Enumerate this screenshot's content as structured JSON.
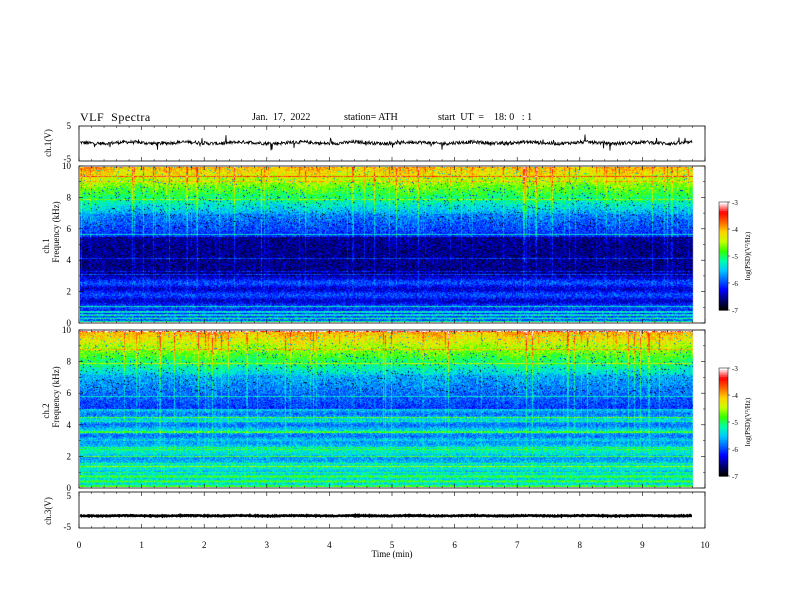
{
  "header": {
    "title": "VLF  Spectra",
    "date": "Jan.  17,  2022",
    "station": "station= ATH",
    "start": "start  UT  =    18: 0   : 1"
  },
  "chart_data": {
    "type": "heatmap",
    "x_axis": {
      "label": "Time  (min)",
      "range": [
        0,
        10
      ],
      "ticks": [
        "0",
        "1",
        "2",
        "3",
        "4",
        "5",
        "6",
        "7",
        "8",
        "9",
        "10"
      ],
      "data_end_min": 9.8
    },
    "panels": [
      {
        "name": "ch1-waveform",
        "type": "line",
        "ylabel": "ch.1(V)",
        "ylim": [
          -5,
          5
        ],
        "yticks": [
          "5",
          "-5"
        ],
        "baseline_v": 0.2,
        "noise_amplitude_v": 0.8,
        "spike_amplitude_v": 2.0,
        "color": "#000000"
      },
      {
        "name": "ch1-spectrogram",
        "type": "heatmap",
        "ylabel": "Frequency  (kHz)",
        "channel_label": "ch.1",
        "ylim": [
          0,
          10
        ],
        "yticks": [
          "0",
          "2",
          "4",
          "6",
          "8",
          "10"
        ],
        "colorbar": {
          "label": "log(PSD)(V²/Hz)",
          "range": [
            -7,
            -3
          ],
          "ticks": [
            "-3",
            "-4",
            "-5",
            "-6",
            "-7"
          ]
        }
      },
      {
        "name": "ch2-spectrogram",
        "type": "heatmap",
        "ylabel": "Frequency  (kHz)",
        "channel_label": "ch.2",
        "ylim": [
          0,
          10
        ],
        "yticks": [
          "0",
          "2",
          "4",
          "6",
          "8",
          "10"
        ],
        "colorbar": {
          "label": "log(PSD)(V²/Hz)",
          "range": [
            -7,
            -3
          ],
          "ticks": [
            "-3",
            "-4",
            "-5",
            "-6",
            "-7"
          ]
        }
      },
      {
        "name": "ch3-waveform",
        "type": "line",
        "ylabel": "ch.3(V)",
        "ylim": [
          -5,
          5
        ],
        "yticks": [
          "5",
          "-5"
        ],
        "baseline_v": -1.6,
        "noise_amplitude_v": 0.2,
        "color": "#000000"
      }
    ],
    "colormap": [
      "#000000",
      "#00007a",
      "#0000ff",
      "#0064ff",
      "#00c8ff",
      "#00ffaa",
      "#32ff00",
      "#c8ff00",
      "#ffd200",
      "#ff6400",
      "#ff0000",
      "#ffffff"
    ]
  }
}
